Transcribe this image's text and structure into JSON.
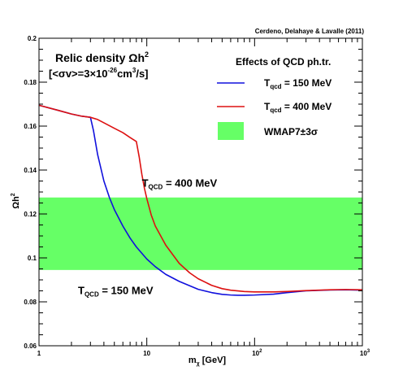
{
  "chart_data": {
    "type": "line",
    "credit": "Cerdeno, Delahaye & Lavalle (2011)",
    "title_line1": "Relic density Ωh",
    "title_line1_sup": "2",
    "title_line2_pre": "[<σv>=3×10",
    "title_line2_sup": "-26",
    "title_line2_post": "cm",
    "title_line2_sup2": "3",
    "title_line2_end": "/s]",
    "ylabel": "Ωh",
    "ylabel_sup": "2",
    "xlabel_pre": "m",
    "xlabel_sub": "χ",
    "xlabel_post": " [GeV]",
    "xscale": "log",
    "xlim": [
      1,
      1000
    ],
    "ylim": [
      0.06,
      0.2
    ],
    "x_ticks": [
      {
        "value": 1,
        "label": "1"
      },
      {
        "value": 10,
        "label": "10"
      },
      {
        "value": 100,
        "label": "10",
        "sup": "2"
      },
      {
        "value": 1000,
        "label": "10",
        "sup": "3"
      }
    ],
    "y_ticks": [
      {
        "value": 0.06,
        "label": "0.06"
      },
      {
        "value": 0.08,
        "label": "0.08"
      },
      {
        "value": 0.1,
        "label": "0.1"
      },
      {
        "value": 0.12,
        "label": "0.12"
      },
      {
        "value": 0.14,
        "label": "0.14"
      },
      {
        "value": 0.16,
        "label": "0.16"
      },
      {
        "value": 0.18,
        "label": "0.18"
      },
      {
        "value": 0.2,
        "label": "0.2"
      }
    ],
    "legend": {
      "title": "Effects of QCD ph.tr.",
      "entries": [
        {
          "label_pre": "T",
          "label_sub": "qcd",
          "label_post": " = 150 MeV",
          "color": "#1010dd",
          "kind": "line"
        },
        {
          "label_pre": "T",
          "label_sub": "qcd",
          "label_post": " = 400 MeV",
          "color": "#dd1010",
          "kind": "line"
        },
        {
          "label_pre": "WMAP7±3σ",
          "label_sub": "",
          "label_post": "",
          "color": "#66ff66",
          "kind": "box"
        }
      ]
    },
    "band": {
      "name": "WMAP7±3σ",
      "ymin": 0.0945,
      "ymax": 0.1275,
      "color": "#66ff66"
    },
    "annotations": [
      {
        "pre": "T",
        "sub": "QCD",
        "post": " = 400 MeV",
        "x": 9.0,
        "y": 0.1325
      },
      {
        "pre": "T",
        "sub": "QCD",
        "post": " = 150 MeV",
        "x": 2.3,
        "y": 0.0835
      }
    ],
    "series": [
      {
        "color": "#1010dd",
        "x": [
          1,
          1.5,
          2,
          2.5,
          3,
          3.2,
          3.5,
          4,
          4.5,
          5,
          6,
          7,
          8,
          10,
          12,
          15,
          20,
          30,
          40,
          50,
          60,
          70,
          80,
          100,
          150,
          200,
          300,
          500,
          700,
          1000
        ],
        "y": [
          0.1695,
          0.1672,
          0.1655,
          0.1645,
          0.164,
          0.158,
          0.147,
          0.135,
          0.1275,
          0.122,
          0.1145,
          0.109,
          0.105,
          0.0995,
          0.096,
          0.0925,
          0.0893,
          0.0857,
          0.0842,
          0.0834,
          0.0831,
          0.083,
          0.083,
          0.0831,
          0.0835,
          0.0842,
          0.085,
          0.0854,
          0.0855,
          0.0853
        ]
      },
      {
        "color": "#dd1010",
        "x": [
          1,
          1.5,
          2,
          2.5,
          3,
          3.5,
          4,
          5,
          6,
          7,
          8,
          8.5,
          9,
          9.5,
          10,
          11,
          12,
          15,
          20,
          25,
          30,
          40,
          50,
          60,
          80,
          100,
          150,
          200,
          300,
          500,
          700,
          1000
        ],
        "y": [
          0.1695,
          0.1672,
          0.1655,
          0.1645,
          0.164,
          0.163,
          0.1615,
          0.159,
          0.157,
          0.1548,
          0.153,
          0.146,
          0.138,
          0.1318,
          0.127,
          0.1195,
          0.1145,
          0.1058,
          0.0975,
          0.0932,
          0.0905,
          0.0875,
          0.086,
          0.0853,
          0.0847,
          0.0845,
          0.0845,
          0.0847,
          0.0851,
          0.0855,
          0.0856,
          0.0855
        ]
      }
    ]
  }
}
